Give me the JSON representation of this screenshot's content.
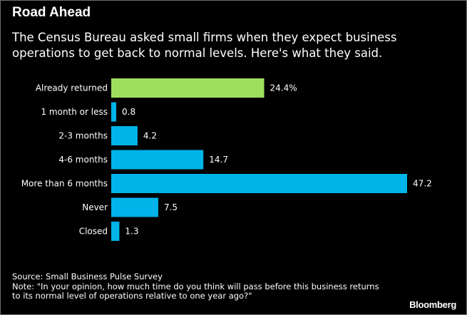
{
  "chart_data": {
    "type": "bar",
    "orientation": "horizontal",
    "title": "Road Ahead",
    "subtitle": "The Census Bureau asked small firms when they expect business operations to get back to normal levels. Here's what they said.",
    "categories": [
      "Already returned",
      "1 month or less",
      "2-3 months",
      "4-6 months",
      "More than 6 months",
      "Never",
      "Closed"
    ],
    "values": [
      24.4,
      0.8,
      4.2,
      14.7,
      47.2,
      7.5,
      1.3
    ],
    "value_labels": [
      "24.4%",
      "0.8",
      "4.2",
      "14.7",
      "47.2",
      "7.5",
      "1.3"
    ],
    "highlight_index": 0,
    "colors": {
      "highlight": "#9fdf5e",
      "default": "#00b4ea",
      "background": "#000000"
    },
    "xlim": [
      0,
      47.2
    ],
    "grid": false,
    "legend": "none"
  },
  "footer": {
    "source": "Source: Small Business Pulse Survey",
    "note": "Note: \"In your opinion, how much time do you think will pass before this business returns to its normal level of operations relative to one year ago?\"",
    "brand": "Bloomberg"
  }
}
